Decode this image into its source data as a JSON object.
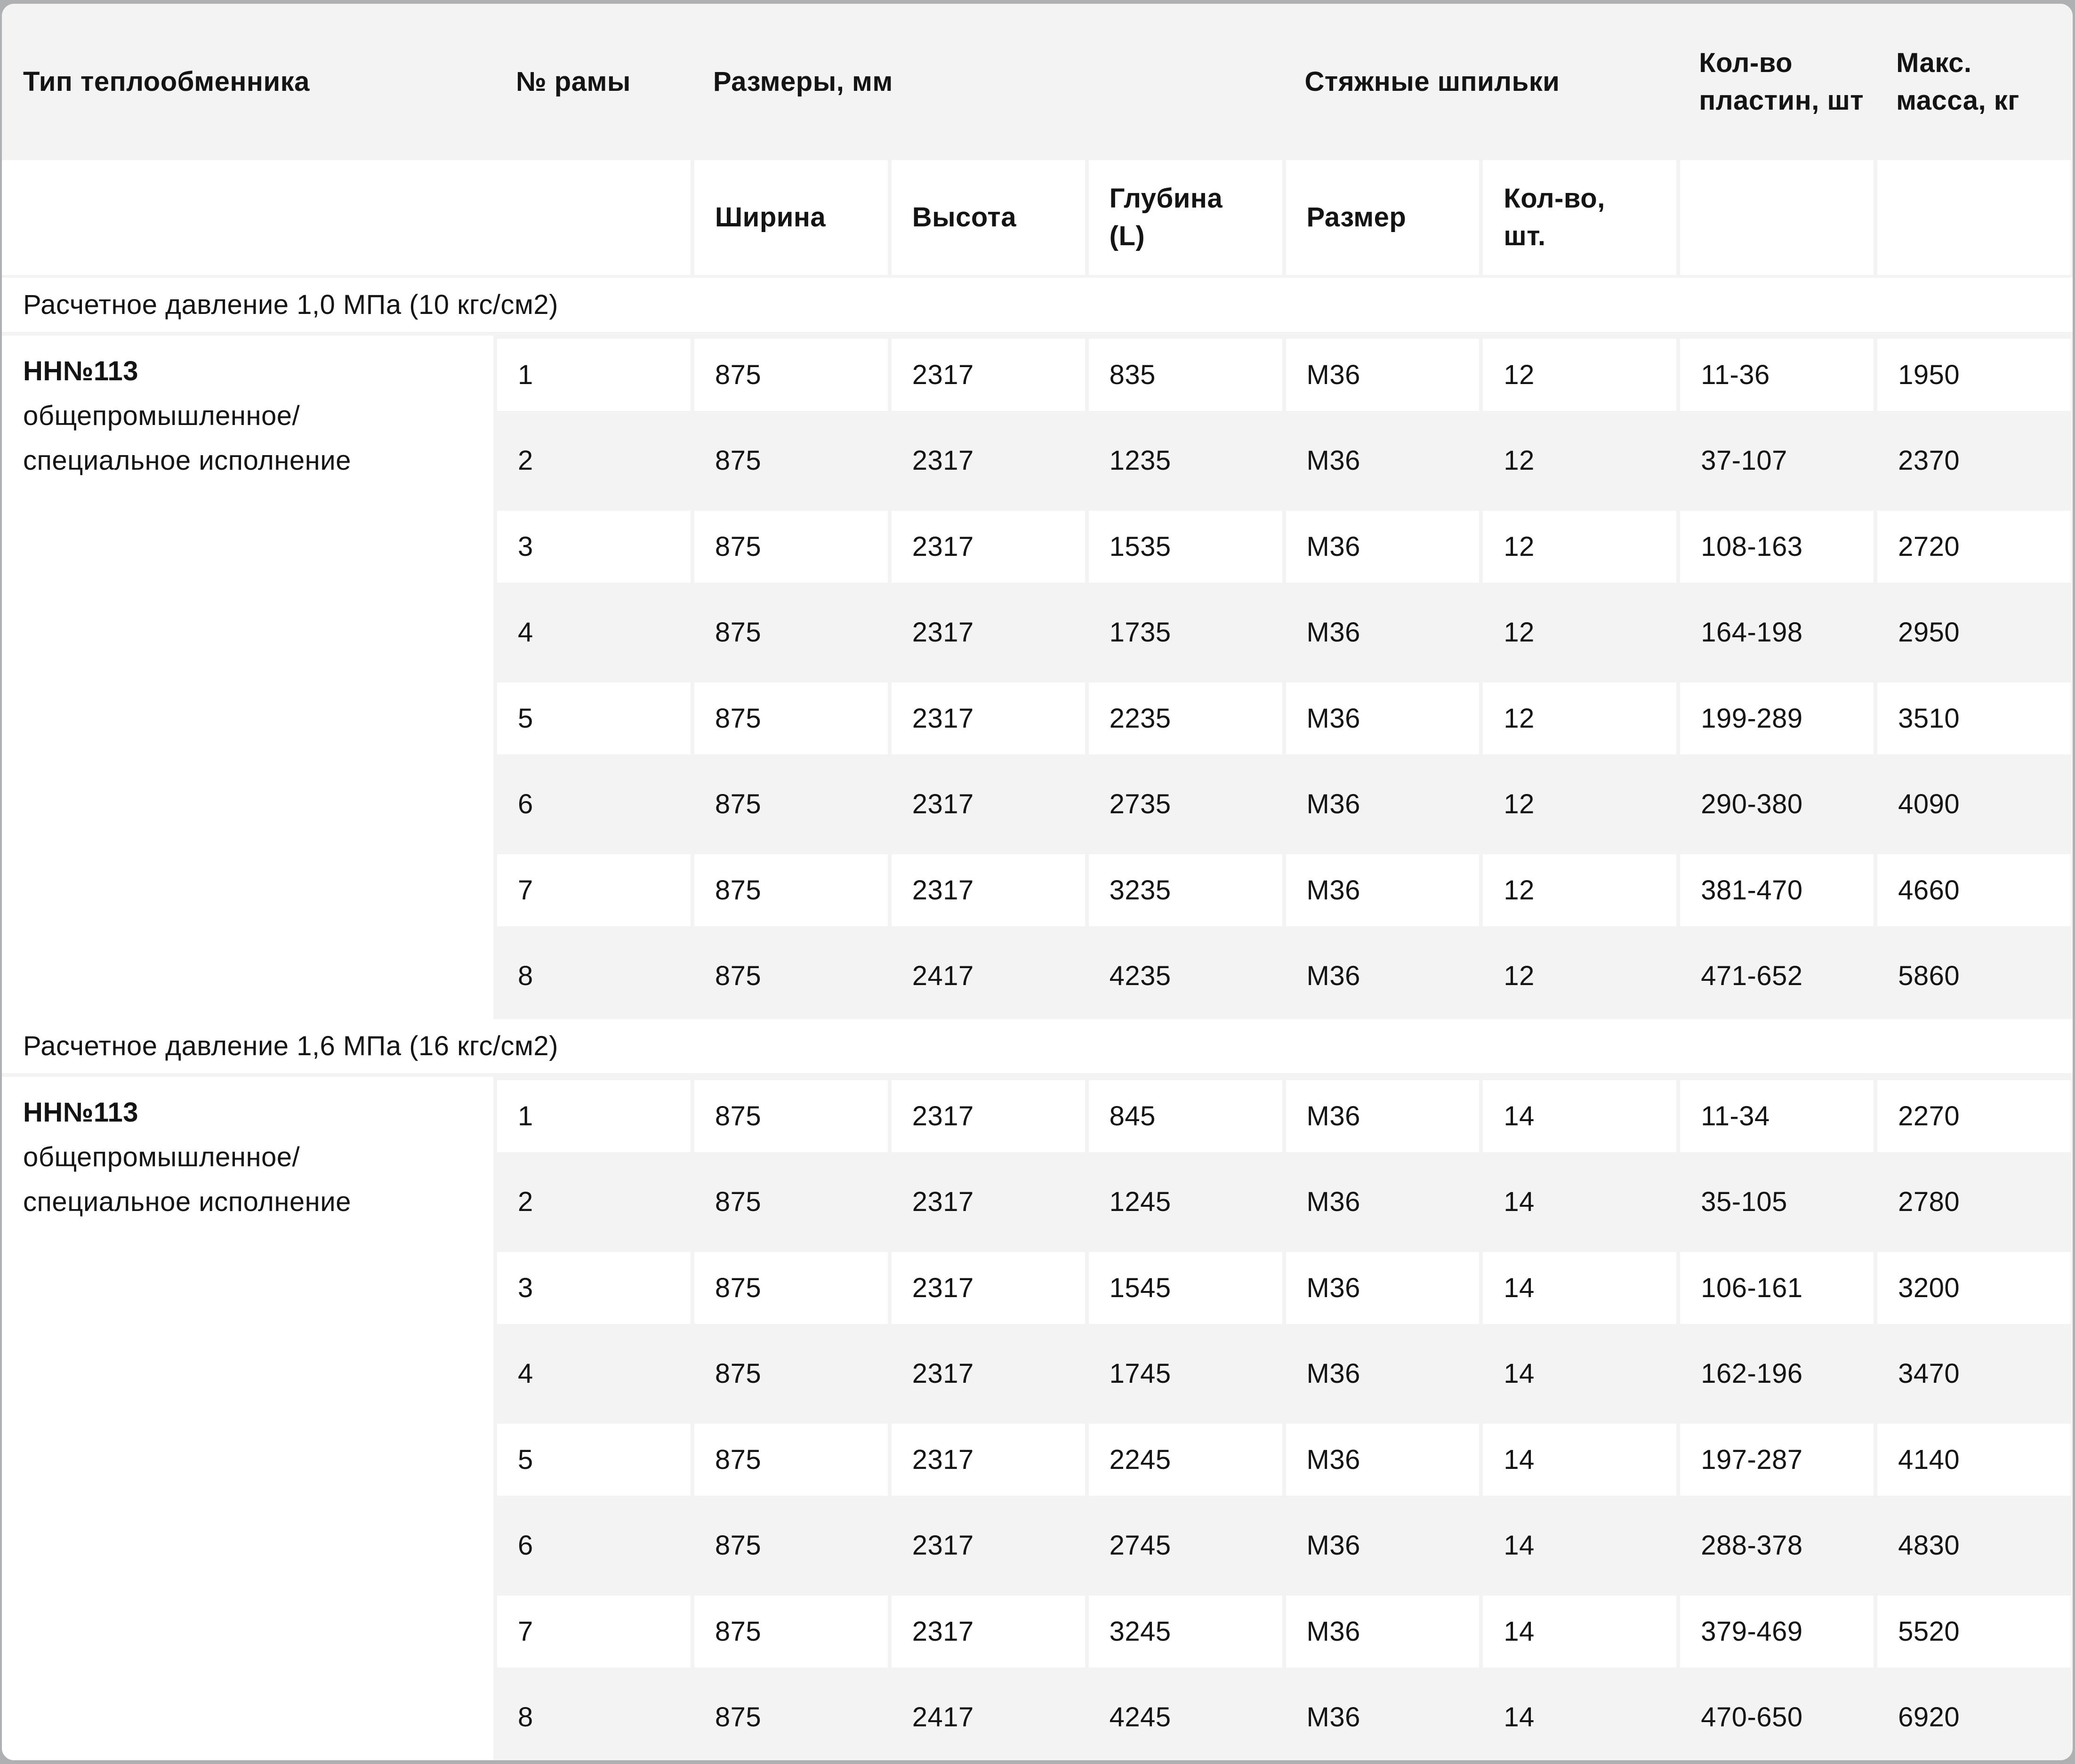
{
  "header": {
    "col_type": "Тип теплообменника",
    "col_frame": "№ рамы",
    "col_dimensions": "Размеры, мм",
    "col_studs": "Стяжные шпильки",
    "col_plates": "Кол-во пластин, шт",
    "col_mass": "Макс. масса, кг",
    "sub_width": "Ширина",
    "sub_height": "Высота",
    "sub_depth": "Глубина (L)",
    "sub_size": "Размер",
    "sub_qty": "Кол-во, шт."
  },
  "columns_order": [
    "№ рамы",
    "Ширина",
    "Высота",
    "Глубина (L)",
    "Размер",
    "Кол-во, шт.",
    "Кол-во пластин, шт",
    "Макс. масса, кг"
  ],
  "sections": [
    {
      "title": "Расчетное давление 1,0 МПа (10 кгс/см2)",
      "type_name": "НН№113",
      "type_desc": "общепромышленное/специальное исполнение",
      "rows": [
        [
          "1",
          "875",
          "2317",
          "835",
          "М36",
          "12",
          "11-36",
          "1950"
        ],
        [
          "2",
          "875",
          "2317",
          "1235",
          "М36",
          "12",
          "37-107",
          "2370"
        ],
        [
          "3",
          "875",
          "2317",
          "1535",
          "М36",
          "12",
          "108-163",
          "2720"
        ],
        [
          "4",
          "875",
          "2317",
          "1735",
          "М36",
          "12",
          "164-198",
          "2950"
        ],
        [
          "5",
          "875",
          "2317",
          "2235",
          "М36",
          "12",
          "199-289",
          "3510"
        ],
        [
          "6",
          "875",
          "2317",
          "2735",
          "М36",
          "12",
          "290-380",
          "4090"
        ],
        [
          "7",
          "875",
          "2317",
          "3235",
          "М36",
          "12",
          "381-470",
          "4660"
        ],
        [
          "8",
          "875",
          "2417",
          "4235",
          "М36",
          "12",
          "471-652",
          "5860"
        ]
      ]
    },
    {
      "title": "Расчетное давление 1,6 МПа (16 кгс/см2)",
      "type_name": "НН№113",
      "type_desc": "общепромышленное/специальное исполнение",
      "rows": [
        [
          "1",
          "875",
          "2317",
          "845",
          "М36",
          "14",
          "11-34",
          "2270"
        ],
        [
          "2",
          "875",
          "2317",
          "1245",
          "М36",
          "14",
          "35-105",
          "2780"
        ],
        [
          "3",
          "875",
          "2317",
          "1545",
          "М36",
          "14",
          "106-161",
          "3200"
        ],
        [
          "4",
          "875",
          "2317",
          "1745",
          "М36",
          "14",
          "162-196",
          "3470"
        ],
        [
          "5",
          "875",
          "2317",
          "2245",
          "М36",
          "14",
          "197-287",
          "4140"
        ],
        [
          "6",
          "875",
          "2317",
          "2745",
          "М36",
          "14",
          "288-378",
          "4830"
        ],
        [
          "7",
          "875",
          "2317",
          "3245",
          "М36",
          "14",
          "379-469",
          "5520"
        ],
        [
          "8",
          "875",
          "2417",
          "4245",
          "М36",
          "14",
          "470-650",
          "6920"
        ]
      ]
    }
  ],
  "colors": {
    "band_gray": "#f3f3f4",
    "card_white": "#ffffff",
    "page_edge": "#aeb0b2",
    "text": "#141414"
  }
}
